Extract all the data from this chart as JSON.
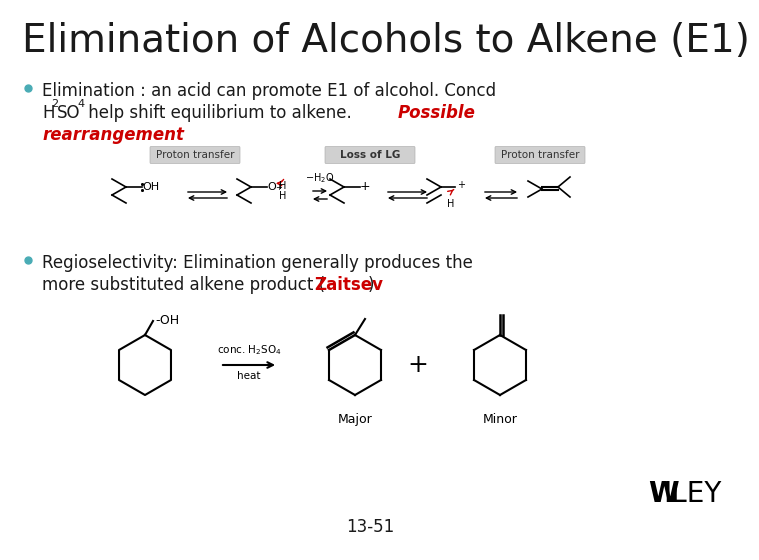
{
  "title": "Elimination of Alcohols to Alkene (E1)",
  "title_color": "#1a1a1a",
  "title_fontsize": 28,
  "background_color": "#ffffff",
  "bullet_color": "#4AACB5",
  "page_number": "13-51",
  "wiley_text": "WILEY",
  "bullet1_line1": "Elimination : an acid can promote E1 of alcohol. Concd",
  "bullet1_line2_part1": "H",
  "bullet1_line2_sub1": "2",
  "bullet1_line2_part2": "SO",
  "bullet1_line2_sub2": "4",
  "bullet1_line2_part3": " help shift equilibrium to alkene. ",
  "bullet1_line2_red": "Possible",
  "bullet1_line3_red": "rearrangement",
  "label1": "Proton transfer",
  "label2": "Loss of LG",
  "label3": "Proton transfer",
  "bullet2_line1": "Regioselectivity: Elimination generally produces the",
  "bullet2_line2_part1": "more substituted alkene product (",
  "bullet2_line2_red": "Zaitsev",
  "bullet2_line2_part2": ")",
  "arrow_label1": "conc. H",
  "arrow_label1_sub": "2",
  "arrow_label1_part2": "SO",
  "arrow_label1_sub2": "4",
  "arrow_label2": "heat",
  "major_label": "Major",
  "minor_label": "Minor"
}
